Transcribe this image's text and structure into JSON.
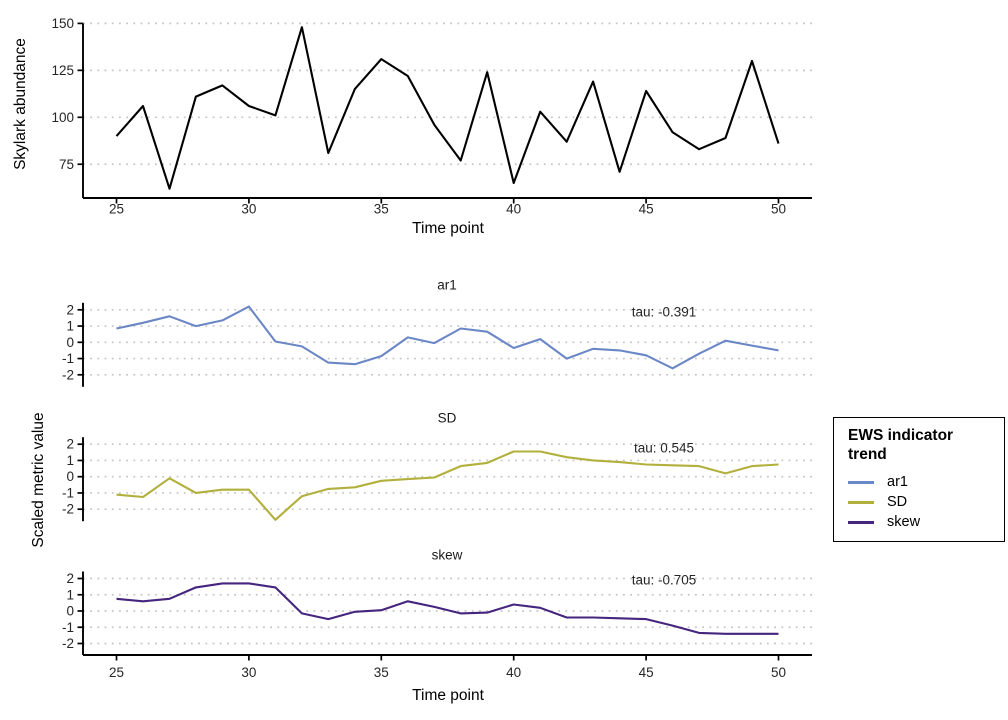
{
  "page": {
    "background": "#ffffff"
  },
  "chart_data": [
    {
      "type": "line",
      "title": "",
      "ylabel": "Skylark abundance",
      "xlabel": "Time point",
      "x": [
        25,
        26,
        27,
        28,
        29,
        30,
        31,
        32,
        33,
        34,
        35,
        36,
        37,
        38,
        39,
        40,
        41,
        42,
        43,
        44,
        45,
        46,
        47,
        48,
        49,
        50
      ],
      "series": [
        {
          "name": "Skylark abundance",
          "color": "#000000",
          "values": [
            90,
            106,
            62,
            111,
            117,
            106,
            101,
            148,
            81,
            115,
            131,
            122,
            96,
            77,
            124,
            65,
            103,
            87,
            119,
            71,
            114,
            92,
            83,
            89,
            130,
            86
          ]
        }
      ],
      "xticks": [
        25,
        30,
        35,
        40,
        45,
        50
      ],
      "yticks": [
        75,
        100,
        125,
        150
      ],
      "ylim": [
        57,
        152
      ],
      "grid": "horizontal-dotted",
      "legend_position": "none"
    },
    {
      "type": "line",
      "title": "",
      "ylabel": "Scaled metric value",
      "xlabel": "Time point",
      "x": [
        25,
        26,
        27,
        28,
        29,
        30,
        31,
        32,
        33,
        34,
        35,
        36,
        37,
        38,
        39,
        40,
        41,
        42,
        43,
        44,
        45,
        46,
        47,
        48,
        49,
        50
      ],
      "xticks": [
        25,
        30,
        35,
        40,
        45,
        50
      ],
      "yticks": [
        2,
        1,
        0,
        -1,
        -2
      ],
      "ylim": [
        -2.8,
        2.5
      ],
      "grid": "horizontal-dotted",
      "legend_position": "right",
      "facets": [
        {
          "title": "ar1",
          "tau_label": "tau: -0.391",
          "color": "#6b87c6",
          "values": [
            0.85,
            1.2,
            1.6,
            1.0,
            1.35,
            2.2,
            0.05,
            -0.25,
            -1.25,
            -1.35,
            -0.85,
            0.3,
            -0.05,
            0.85,
            0.65,
            -0.35,
            0.2,
            -1.0,
            -0.4,
            -0.5,
            -0.8,
            -1.6,
            -0.7,
            0.1,
            -0.2,
            -0.5
          ]
        },
        {
          "title": "SD",
          "tau_label": "tau: 0.545",
          "color": "#b2b03c",
          "values": [
            -1.1,
            -1.25,
            -0.1,
            -1.0,
            -0.8,
            -0.8,
            -2.65,
            -1.2,
            -0.75,
            -0.65,
            -0.25,
            -0.15,
            -0.05,
            0.65,
            0.85,
            1.55,
            1.55,
            1.2,
            1.0,
            0.9,
            0.75,
            0.7,
            0.65,
            0.2,
            0.65,
            0.75
          ]
        },
        {
          "title": "skew",
          "tau_label": "tau: -0.705",
          "color": "#45257e",
          "values": [
            0.75,
            0.6,
            0.75,
            1.45,
            1.7,
            1.7,
            1.45,
            -0.15,
            -0.5,
            -0.05,
            0.05,
            0.6,
            0.25,
            -0.15,
            -0.1,
            0.4,
            0.2,
            -0.4,
            -0.4,
            -0.45,
            -0.5,
            -0.9,
            -1.35,
            -1.4,
            -1.4,
            -1.4
          ]
        }
      ]
    }
  ],
  "legend": {
    "title": "EWS indicator trend",
    "items": [
      {
        "label": "ar1",
        "color": "#6b87c6"
      },
      {
        "label": "SD",
        "color": "#b2b03c"
      },
      {
        "label": "skew",
        "color": "#45257e"
      }
    ]
  },
  "style": {
    "grid_color": "#c5c5c5",
    "axis_color": "#000000",
    "tick_label_color": "#262626"
  }
}
